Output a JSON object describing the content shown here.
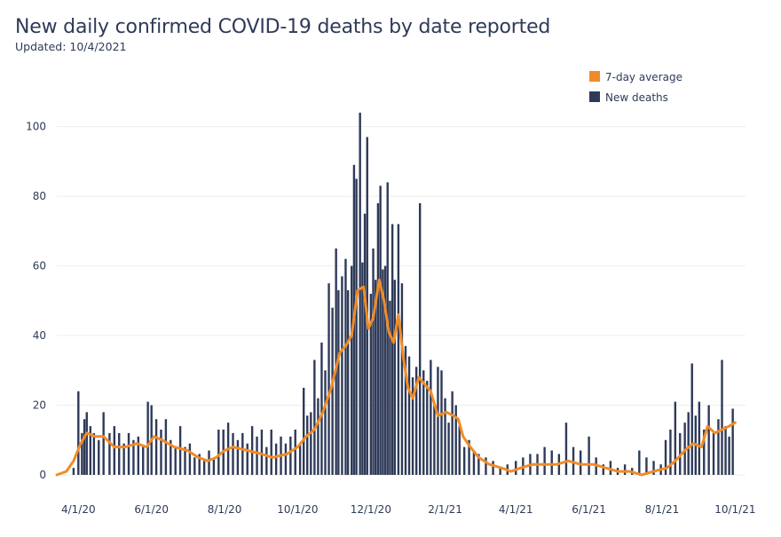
{
  "header": {
    "title": "New daily confirmed COVID-19 deaths by date reported",
    "updated": "Updated: 10/4/2021"
  },
  "colors": {
    "bars": "#2e3a58",
    "average": "#f08c28",
    "grid": "#eeeeee",
    "text": "#2e3a58"
  },
  "chart_data": {
    "type": "bar",
    "title": "New daily confirmed COVID-19 deaths by date reported",
    "subtitle": "Updated: 10/4/2021",
    "xlabel": "",
    "ylabel": "",
    "ylim": [
      0,
      105
    ],
    "yticks": [
      0,
      20,
      40,
      60,
      80,
      100
    ],
    "xlim": [
      "2020-03-14",
      "2021-10-01"
    ],
    "grid": true,
    "legend_position": "top-right",
    "xticks": [
      {
        "date": "2020-04-01",
        "label": "4/1/20"
      },
      {
        "date": "2020-06-01",
        "label": "6/1/20"
      },
      {
        "date": "2020-08-01",
        "label": "8/1/20"
      },
      {
        "date": "2020-10-01",
        "label": "10/1/20"
      },
      {
        "date": "2020-12-01",
        "label": "12/1/20"
      },
      {
        "date": "2021-02-01",
        "label": "2/1/21"
      },
      {
        "date": "2021-04-01",
        "label": "4/1/21"
      },
      {
        "date": "2021-06-01",
        "label": "6/1/21"
      },
      {
        "date": "2021-08-01",
        "label": "8/1/21"
      },
      {
        "date": "2021-10-01",
        "label": "10/1/21"
      }
    ],
    "series": [
      {
        "name": "7-day average",
        "kind": "line",
        "points": [
          [
            "2020-03-14",
            0
          ],
          [
            "2020-03-22",
            1
          ],
          [
            "2020-03-28",
            4
          ],
          [
            "2020-04-03",
            9
          ],
          [
            "2020-04-08",
            12
          ],
          [
            "2020-04-15",
            11
          ],
          [
            "2020-04-22",
            11
          ],
          [
            "2020-05-01",
            8
          ],
          [
            "2020-05-10",
            8
          ],
          [
            "2020-05-20",
            9
          ],
          [
            "2020-05-28",
            8
          ],
          [
            "2020-06-03",
            11
          ],
          [
            "2020-06-10",
            10
          ],
          [
            "2020-06-20",
            8
          ],
          [
            "2020-07-01",
            7
          ],
          [
            "2020-07-10",
            5
          ],
          [
            "2020-07-18",
            4
          ],
          [
            "2020-07-25",
            5
          ],
          [
            "2020-08-01",
            7
          ],
          [
            "2020-08-08",
            8
          ],
          [
            "2020-08-20",
            7
          ],
          [
            "2020-09-01",
            6
          ],
          [
            "2020-09-10",
            5
          ],
          [
            "2020-09-22",
            6
          ],
          [
            "2020-10-01",
            8
          ],
          [
            "2020-10-08",
            11
          ],
          [
            "2020-10-15",
            13
          ],
          [
            "2020-10-22",
            18
          ],
          [
            "2020-10-29",
            25
          ],
          [
            "2020-11-05",
            35
          ],
          [
            "2020-11-10",
            37
          ],
          [
            "2020-11-15",
            40
          ],
          [
            "2020-11-20",
            53
          ],
          [
            "2020-11-25",
            54
          ],
          [
            "2020-11-29",
            42
          ],
          [
            "2020-12-03",
            45
          ],
          [
            "2020-12-08",
            56
          ],
          [
            "2020-12-12",
            50
          ],
          [
            "2020-12-16",
            41
          ],
          [
            "2020-12-20",
            38
          ],
          [
            "2020-12-24",
            46
          ],
          [
            "2020-12-28",
            34
          ],
          [
            "2021-01-01",
            25
          ],
          [
            "2021-01-05",
            22
          ],
          [
            "2021-01-10",
            28
          ],
          [
            "2021-01-15",
            26
          ],
          [
            "2021-01-20",
            24
          ],
          [
            "2021-01-26",
            17
          ],
          [
            "2021-02-02",
            18
          ],
          [
            "2021-02-08",
            17
          ],
          [
            "2021-02-12",
            16
          ],
          [
            "2021-02-16",
            11
          ],
          [
            "2021-02-22",
            8
          ],
          [
            "2021-03-01",
            5
          ],
          [
            "2021-03-10",
            3
          ],
          [
            "2021-03-20",
            2
          ],
          [
            "2021-03-28",
            1
          ],
          [
            "2021-04-05",
            2
          ],
          [
            "2021-04-15",
            3
          ],
          [
            "2021-04-25",
            3
          ],
          [
            "2021-05-05",
            3
          ],
          [
            "2021-05-15",
            4
          ],
          [
            "2021-05-25",
            3
          ],
          [
            "2021-06-05",
            3
          ],
          [
            "2021-06-15",
            2
          ],
          [
            "2021-06-25",
            1
          ],
          [
            "2021-07-05",
            1
          ],
          [
            "2021-07-15",
            0
          ],
          [
            "2021-07-25",
            1
          ],
          [
            "2021-08-05",
            2
          ],
          [
            "2021-08-12",
            4
          ],
          [
            "2021-08-20",
            7
          ],
          [
            "2021-08-27",
            9
          ],
          [
            "2021-09-03",
            8
          ],
          [
            "2021-09-08",
            14
          ],
          [
            "2021-09-14",
            12
          ],
          [
            "2021-09-20",
            13
          ],
          [
            "2021-09-26",
            14
          ],
          [
            "2021-10-01",
            15
          ]
        ]
      },
      {
        "name": "New deaths",
        "kind": "bar",
        "note_values_sampled": false,
        "points": [
          [
            "2020-03-28",
            2
          ],
          [
            "2020-04-01",
            24
          ],
          [
            "2020-04-04",
            12
          ],
          [
            "2020-04-06",
            16
          ],
          [
            "2020-04-08",
            18
          ],
          [
            "2020-04-11",
            14
          ],
          [
            "2020-04-14",
            12
          ],
          [
            "2020-04-18",
            10
          ],
          [
            "2020-04-22",
            18
          ],
          [
            "2020-04-27",
            12
          ],
          [
            "2020-05-01",
            14
          ],
          [
            "2020-05-05",
            12
          ],
          [
            "2020-05-09",
            9
          ],
          [
            "2020-05-13",
            12
          ],
          [
            "2020-05-17",
            10
          ],
          [
            "2020-05-21",
            11
          ],
          [
            "2020-05-25",
            8
          ],
          [
            "2020-05-29",
            21
          ],
          [
            "2020-06-01",
            20
          ],
          [
            "2020-06-05",
            16
          ],
          [
            "2020-06-09",
            13
          ],
          [
            "2020-06-13",
            16
          ],
          [
            "2020-06-17",
            10
          ],
          [
            "2020-06-21",
            8
          ],
          [
            "2020-06-25",
            14
          ],
          [
            "2020-06-29",
            8
          ],
          [
            "2020-07-03",
            9
          ],
          [
            "2020-07-07",
            5
          ],
          [
            "2020-07-11",
            6
          ],
          [
            "2020-07-15",
            4
          ],
          [
            "2020-07-19",
            7
          ],
          [
            "2020-07-23",
            5
          ],
          [
            "2020-07-27",
            13
          ],
          [
            "2020-07-31",
            13
          ],
          [
            "2020-08-04",
            15
          ],
          [
            "2020-08-08",
            12
          ],
          [
            "2020-08-12",
            10
          ],
          [
            "2020-08-16",
            12
          ],
          [
            "2020-08-20",
            9
          ],
          [
            "2020-08-24",
            14
          ],
          [
            "2020-08-28",
            11
          ],
          [
            "2020-09-01",
            13
          ],
          [
            "2020-09-05",
            8
          ],
          [
            "2020-09-09",
            13
          ],
          [
            "2020-09-13",
            9
          ],
          [
            "2020-09-17",
            11
          ],
          [
            "2020-09-21",
            9
          ],
          [
            "2020-09-25",
            11
          ],
          [
            "2020-09-29",
            13
          ],
          [
            "2020-10-03",
            9
          ],
          [
            "2020-10-06",
            25
          ],
          [
            "2020-10-09",
            17
          ],
          [
            "2020-10-12",
            18
          ],
          [
            "2020-10-15",
            33
          ],
          [
            "2020-10-18",
            22
          ],
          [
            "2020-10-21",
            38
          ],
          [
            "2020-10-24",
            30
          ],
          [
            "2020-10-27",
            55
          ],
          [
            "2020-10-30",
            48
          ],
          [
            "2020-11-02",
            65
          ],
          [
            "2020-11-04",
            53
          ],
          [
            "2020-11-07",
            57
          ],
          [
            "2020-11-10",
            62
          ],
          [
            "2020-11-12",
            53
          ],
          [
            "2020-11-15",
            60
          ],
          [
            "2020-11-17",
            89
          ],
          [
            "2020-11-19",
            85
          ],
          [
            "2020-11-22",
            104
          ],
          [
            "2020-11-24",
            61
          ],
          [
            "2020-11-26",
            75
          ],
          [
            "2020-11-28",
            97
          ],
          [
            "2020-12-01",
            52
          ],
          [
            "2020-12-03",
            65
          ],
          [
            "2020-12-05",
            56
          ],
          [
            "2020-12-07",
            78
          ],
          [
            "2020-12-09",
            83
          ],
          [
            "2020-12-11",
            59
          ],
          [
            "2020-12-13",
            60
          ],
          [
            "2020-12-15",
            84
          ],
          [
            "2020-12-17",
            50
          ],
          [
            "2020-12-19",
            72
          ],
          [
            "2020-12-21",
            56
          ],
          [
            "2020-12-24",
            72
          ],
          [
            "2020-12-27",
            55
          ],
          [
            "2020-12-30",
            37
          ],
          [
            "2021-01-02",
            34
          ],
          [
            "2021-01-05",
            28
          ],
          [
            "2021-01-08",
            31
          ],
          [
            "2021-01-11",
            78
          ],
          [
            "2021-01-14",
            30
          ],
          [
            "2021-01-17",
            27
          ],
          [
            "2021-01-20",
            33
          ],
          [
            "2021-01-23",
            20
          ],
          [
            "2021-01-26",
            31
          ],
          [
            "2021-01-29",
            30
          ],
          [
            "2021-02-01",
            22
          ],
          [
            "2021-02-04",
            15
          ],
          [
            "2021-02-07",
            24
          ],
          [
            "2021-02-10",
            20
          ],
          [
            "2021-02-13",
            14
          ],
          [
            "2021-02-17",
            8
          ],
          [
            "2021-02-21",
            10
          ],
          [
            "2021-02-25",
            7
          ],
          [
            "2021-03-01",
            6
          ],
          [
            "2021-03-07",
            5
          ],
          [
            "2021-03-13",
            4
          ],
          [
            "2021-03-19",
            2
          ],
          [
            "2021-03-25",
            3
          ],
          [
            "2021-04-01",
            4
          ],
          [
            "2021-04-07",
            5
          ],
          [
            "2021-04-13",
            6
          ],
          [
            "2021-04-19",
            6
          ],
          [
            "2021-04-25",
            8
          ],
          [
            "2021-05-01",
            7
          ],
          [
            "2021-05-07",
            6
          ],
          [
            "2021-05-13",
            15
          ],
          [
            "2021-05-19",
            8
          ],
          [
            "2021-05-25",
            7
          ],
          [
            "2021-06-01",
            11
          ],
          [
            "2021-06-07",
            5
          ],
          [
            "2021-06-13",
            3
          ],
          [
            "2021-06-19",
            4
          ],
          [
            "2021-06-25",
            2
          ],
          [
            "2021-07-01",
            3
          ],
          [
            "2021-07-07",
            2
          ],
          [
            "2021-07-13",
            7
          ],
          [
            "2021-07-19",
            5
          ],
          [
            "2021-07-25",
            4
          ],
          [
            "2021-07-31",
            3
          ],
          [
            "2021-08-04",
            10
          ],
          [
            "2021-08-08",
            13
          ],
          [
            "2021-08-12",
            21
          ],
          [
            "2021-08-16",
            12
          ],
          [
            "2021-08-20",
            15
          ],
          [
            "2021-08-23",
            18
          ],
          [
            "2021-08-26",
            32
          ],
          [
            "2021-08-29",
            17
          ],
          [
            "2021-09-01",
            21
          ],
          [
            "2021-09-05",
            13
          ],
          [
            "2021-09-09",
            20
          ],
          [
            "2021-09-13",
            12
          ],
          [
            "2021-09-17",
            16
          ],
          [
            "2021-09-20",
            33
          ],
          [
            "2021-09-23",
            14
          ],
          [
            "2021-09-26",
            11
          ],
          [
            "2021-09-29",
            19
          ]
        ]
      }
    ]
  }
}
